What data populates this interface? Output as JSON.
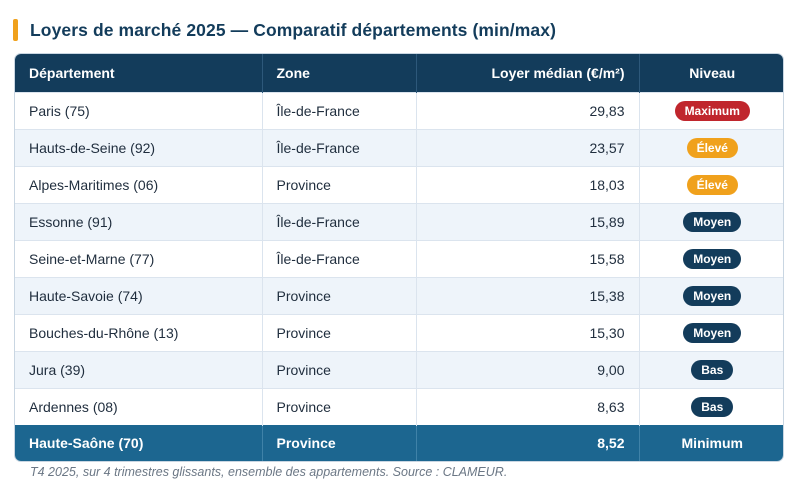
{
  "title": "Loyers de marché 2025 — Comparatif départements (min/max)",
  "columns": [
    "Département",
    "Zone",
    "Loyer médian (€/m²)",
    "Niveau"
  ],
  "rows": [
    {
      "departement": "Paris (75)",
      "zone": "Île-de-France",
      "loyer": "29,83",
      "niveau": "Maximum",
      "badge": "max"
    },
    {
      "departement": "Hauts-de-Seine (92)",
      "zone": "Île-de-France",
      "loyer": "23,57",
      "niveau": "Élevé",
      "badge": "eleve"
    },
    {
      "departement": "Alpes-Maritimes (06)",
      "zone": "Province",
      "loyer": "18,03",
      "niveau": "Élevé",
      "badge": "eleve"
    },
    {
      "departement": "Essonne (91)",
      "zone": "Île-de-France",
      "loyer": "15,89",
      "niveau": "Moyen",
      "badge": "moyen"
    },
    {
      "departement": "Seine-et-Marne (77)",
      "zone": "Île-de-France",
      "loyer": "15,58",
      "niveau": "Moyen",
      "badge": "moyen"
    },
    {
      "departement": "Haute-Savoie (74)",
      "zone": "Province",
      "loyer": "15,38",
      "niveau": "Moyen",
      "badge": "moyen"
    },
    {
      "departement": "Bouches-du-Rhône (13)",
      "zone": "Province",
      "loyer": "15,30",
      "niveau": "Moyen",
      "badge": "moyen"
    },
    {
      "departement": "Jura (39)",
      "zone": "Province",
      "loyer": "9,00",
      "niveau": "Bas",
      "badge": "bas"
    },
    {
      "departement": "Ardennes (08)",
      "zone": "Province",
      "loyer": "8,63",
      "niveau": "Bas",
      "badge": "bas"
    }
  ],
  "footer_row": {
    "departement": "Haute-Saône (70)",
    "zone": "Province",
    "loyer": "8,52",
    "niveau": "Minimum"
  },
  "note": "T4 2025, sur 4 trimestres glissants, ensemble des appartements. Source : CLAMEUR.",
  "colors": {
    "accent": "#f0a11c",
    "header": "#133c5b",
    "footer": "#1c6690",
    "maximum": "#c0262d",
    "eleve": "#f0a11c",
    "moyen": "#133c5b"
  }
}
